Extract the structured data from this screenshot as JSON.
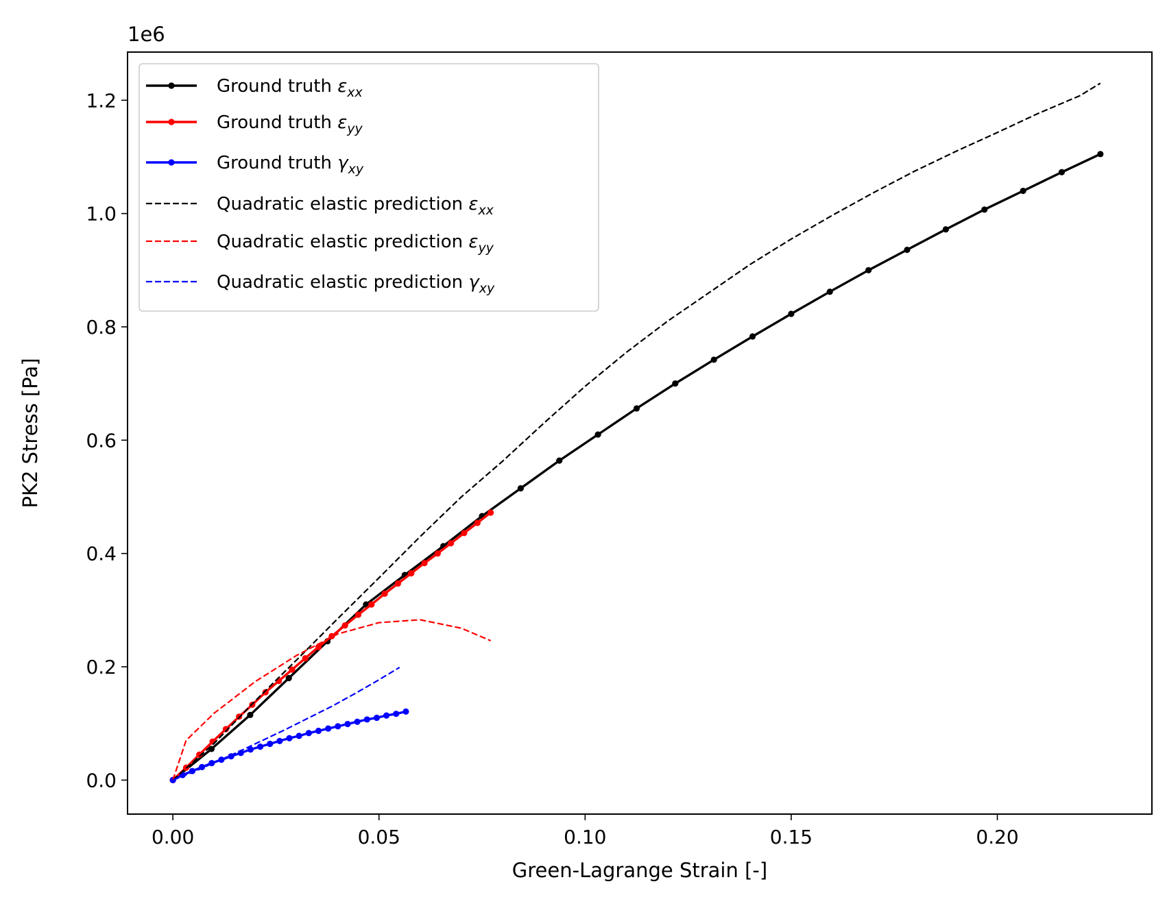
{
  "chart_data": {
    "type": "line",
    "xlabel": "Green-Lagrange Strain [-]",
    "ylabel": "PK2 Stress [Pa]",
    "y_offset_label": "1e6",
    "xlim": [
      -0.011,
      0.2375
    ],
    "ylim": [
      -0.06,
      1.285
    ],
    "y_scale_multiplier": 1000000,
    "x_ticks": [
      0.0,
      0.05,
      0.1,
      0.15,
      0.2
    ],
    "x_tick_labels": [
      "0.00",
      "0.05",
      "0.10",
      "0.15",
      "0.20"
    ],
    "y_ticks": [
      0.0,
      0.2,
      0.4,
      0.6,
      0.8,
      1.0,
      1.2
    ],
    "y_tick_labels": [
      "0.0",
      "0.2",
      "0.4",
      "0.6",
      "0.8",
      "1.0",
      "1.2"
    ],
    "grid": false,
    "legend_position": "upper-left",
    "series": [
      {
        "name": "Ground truth ε_xx",
        "legend_prefix": "Ground truth ",
        "legend_symbol": "ε",
        "legend_subscript": "xx",
        "color": "#000000",
        "style": "solid",
        "markers": true,
        "x": [
          0,
          0.00937,
          0.01875,
          0.02812,
          0.0375,
          0.04687,
          0.05625,
          0.06562,
          0.075,
          0.08437,
          0.09375,
          0.10312,
          0.1125,
          0.12187,
          0.13125,
          0.14062,
          0.15,
          0.15937,
          0.16875,
          0.17812,
          0.1875,
          0.19687,
          0.20625,
          0.21562,
          0.225
        ],
        "y": [
          0,
          0.055,
          0.115,
          0.18,
          0.245,
          0.31,
          0.362,
          0.413,
          0.466,
          0.515,
          0.564,
          0.61,
          0.656,
          0.7,
          0.742,
          0.783,
          0.823,
          0.862,
          0.9,
          0.936,
          0.972,
          1.007,
          1.04,
          1.073,
          1.105
        ]
      },
      {
        "name": "Ground truth ε_yy",
        "legend_prefix": "Ground truth ",
        "legend_symbol": "ε",
        "legend_subscript": "yy",
        "color": "#ff0000",
        "style": "solid",
        "markers": true,
        "x": [
          0,
          0.00321,
          0.00642,
          0.00964,
          0.01285,
          0.01606,
          0.01927,
          0.02248,
          0.0257,
          0.02891,
          0.03212,
          0.03533,
          0.03854,
          0.04176,
          0.04497,
          0.04818,
          0.05139,
          0.0546,
          0.05782,
          0.06103,
          0.06424,
          0.06745,
          0.07066,
          0.07388,
          0.07709
        ],
        "y": [
          0,
          0.022,
          0.045,
          0.068,
          0.09,
          0.112,
          0.133,
          0.155,
          0.175,
          0.195,
          0.215,
          0.235,
          0.254,
          0.273,
          0.292,
          0.31,
          0.329,
          0.347,
          0.365,
          0.383,
          0.4,
          0.418,
          0.436,
          0.454,
          0.472
        ]
      },
      {
        "name": "Ground truth γ_xy",
        "legend_prefix": "Ground truth ",
        "legend_symbol": "γ",
        "legend_subscript": "xy",
        "color": "#0000ff",
        "style": "solid",
        "markers": true,
        "x": [
          0,
          0.00235,
          0.00471,
          0.00706,
          0.00942,
          0.01177,
          0.01413,
          0.01648,
          0.01884,
          0.02119,
          0.02355,
          0.0259,
          0.02826,
          0.03061,
          0.03297,
          0.03532,
          0.03768,
          0.04003,
          0.04239,
          0.04474,
          0.0471,
          0.04945,
          0.05181,
          0.05416,
          0.05652
        ],
        "y": [
          0,
          0.009,
          0.016,
          0.023,
          0.03,
          0.036,
          0.042,
          0.048,
          0.054,
          0.059,
          0.064,
          0.069,
          0.074,
          0.078,
          0.083,
          0.087,
          0.091,
          0.095,
          0.099,
          0.103,
          0.107,
          0.11,
          0.114,
          0.117,
          0.121
        ]
      },
      {
        "name": "Quadratic elastic prediction ε_xx",
        "legend_prefix": "Quadratic elastic prediction ",
        "legend_symbol": "ε",
        "legend_subscript": "xx",
        "color": "#000000",
        "style": "dashed",
        "markers": false,
        "x": [
          0,
          0.01,
          0.02,
          0.03,
          0.04,
          0.05,
          0.06,
          0.07,
          0.08,
          0.09,
          0.1,
          0.11,
          0.12,
          0.13,
          0.14,
          0.15,
          0.16,
          0.17,
          0.18,
          0.19,
          0.2,
          0.21,
          0.22,
          0.225
        ],
        "y": [
          0,
          0.065,
          0.14,
          0.212,
          0.285,
          0.357,
          0.43,
          0.5,
          0.563,
          0.63,
          0.695,
          0.755,
          0.81,
          0.86,
          0.91,
          0.955,
          0.997,
          1.037,
          1.075,
          1.11,
          1.143,
          1.177,
          1.208,
          1.23
        ]
      },
      {
        "name": "Quadratic elastic prediction ε_yy",
        "legend_prefix": "Quadratic elastic prediction ",
        "legend_symbol": "ε",
        "legend_subscript": "yy",
        "color": "#ff0000",
        "style": "dashed",
        "markers": false,
        "x": [
          0,
          0.0032,
          0.01,
          0.02,
          0.03,
          0.04,
          0.05,
          0.06,
          0.07,
          0.0771
        ],
        "y": [
          0,
          0.07,
          0.118,
          0.174,
          0.22,
          0.258,
          0.278,
          0.283,
          0.268,
          0.246
        ]
      },
      {
        "name": "Quadratic elastic prediction γ_xy",
        "legend_prefix": "Quadratic elastic prediction ",
        "legend_symbol": "γ",
        "legend_subscript": "xy",
        "color": "#0000ff",
        "style": "dashed",
        "markers": false,
        "x": [
          0,
          0.0055,
          0.011,
          0.0165,
          0.022,
          0.0275,
          0.033,
          0.0385,
          0.044,
          0.0495,
          0.055
        ],
        "y": [
          0,
          0.016,
          0.034,
          0.052,
          0.071,
          0.09,
          0.11,
          0.13,
          0.152,
          0.175,
          0.199
        ]
      }
    ]
  }
}
